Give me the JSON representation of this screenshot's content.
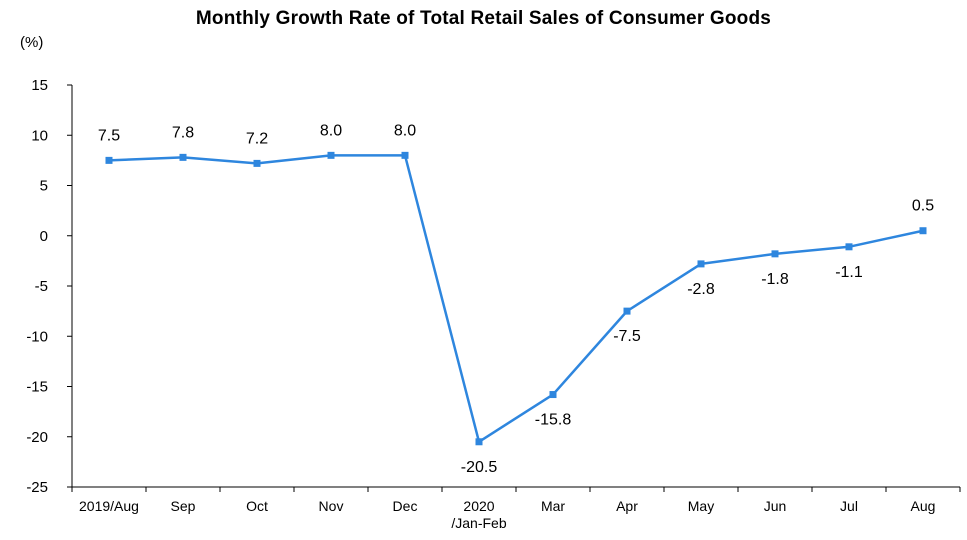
{
  "chart_data": {
    "type": "line",
    "title": "Monthly Growth Rate of Total Retail Sales of Consumer Goods",
    "unit_label": "(%)",
    "xlabel": "",
    "ylabel": "",
    "ylim": [
      -25,
      15
    ],
    "yticks": [
      "15",
      "10",
      "5",
      "0",
      "-5",
      "-10",
      "-15",
      "-20",
      "-25"
    ],
    "grid": false,
    "categories": [
      [
        "2019/Aug"
      ],
      [
        "Sep"
      ],
      [
        "Oct"
      ],
      [
        "Nov"
      ],
      [
        "Dec"
      ],
      [
        "2020",
        "/Jan-Feb"
      ],
      [
        "Mar"
      ],
      [
        "Apr"
      ],
      [
        "May"
      ],
      [
        "Jun"
      ],
      [
        "Jul"
      ],
      [
        "Aug"
      ]
    ],
    "series": [
      {
        "values": [
          7.5,
          7.8,
          7.2,
          8.0,
          8.0,
          -20.5,
          -15.8,
          -7.5,
          -2.8,
          -1.8,
          -1.1,
          0.5
        ],
        "labels": [
          "7.5",
          "7.8",
          "7.2",
          "8.0",
          "8.0",
          "-20.5",
          "-15.8",
          "-7.5",
          "-2.8",
          "-1.8",
          "-1.1",
          "0.5"
        ],
        "color": "#2e86de"
      }
    ]
  }
}
